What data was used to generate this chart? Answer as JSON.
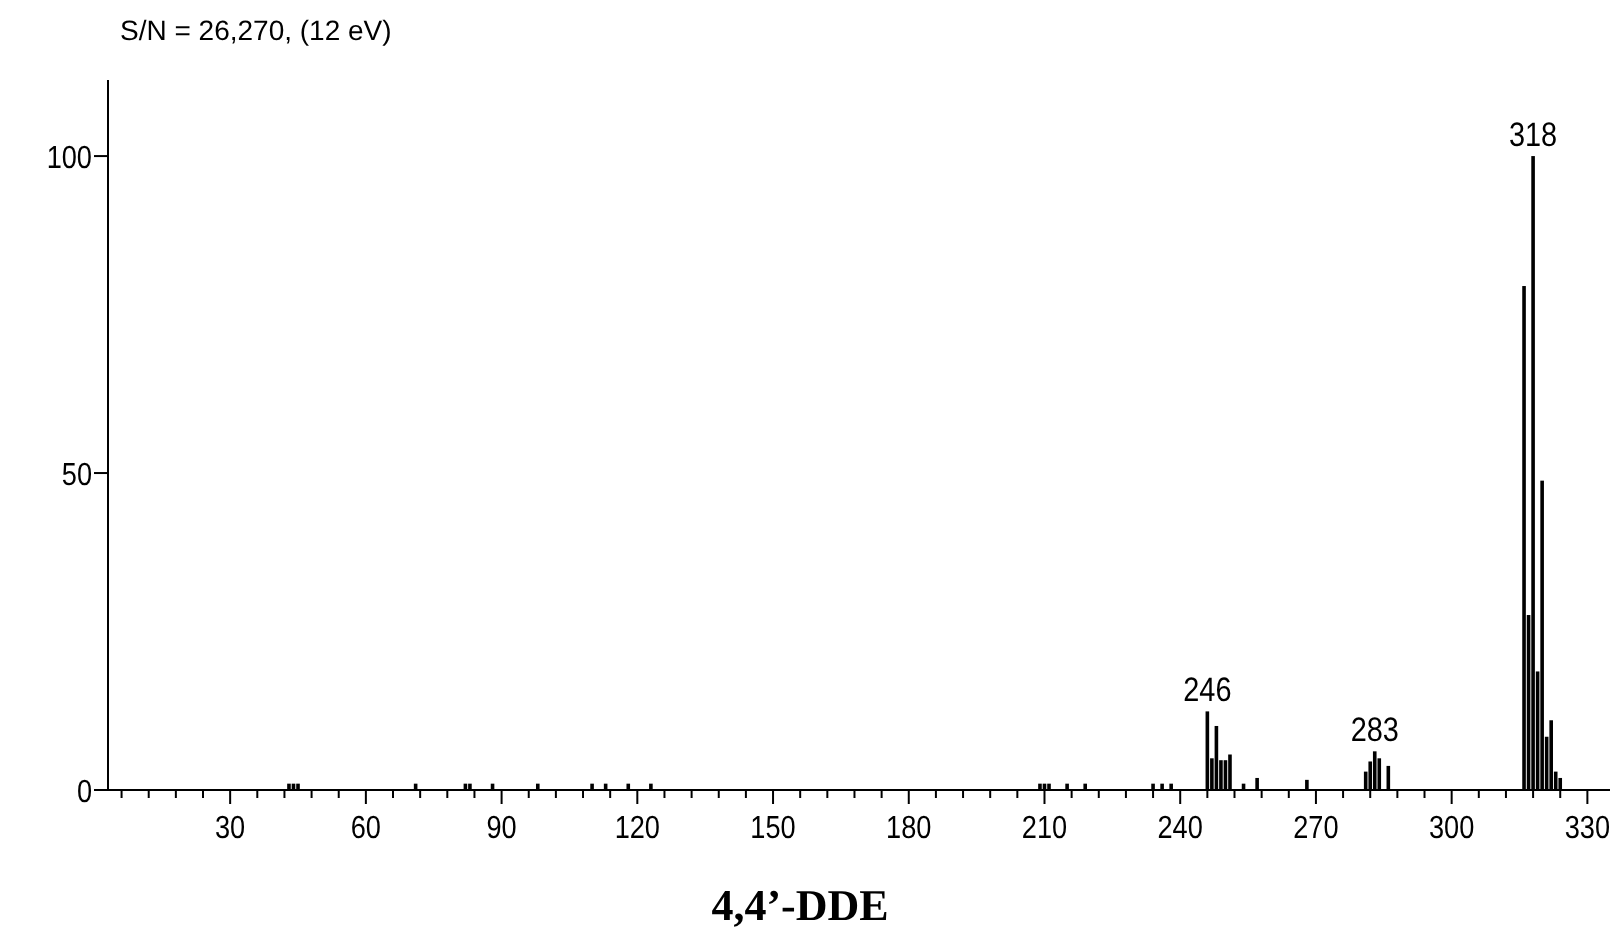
{
  "chart_data": {
    "type": "bar",
    "title": "4,4’-DDE",
    "subtitle": "S/N = 26,270, (12 eV)",
    "x": [
      43,
      44,
      45,
      71,
      82,
      83,
      88,
      98,
      110,
      113,
      118,
      123,
      209,
      210,
      211,
      215,
      219,
      234,
      236,
      238,
      246,
      247,
      248,
      249,
      250,
      251,
      254,
      257,
      268,
      281,
      282,
      283,
      284,
      286,
      316,
      317,
      318,
      319,
      320,
      321,
      322,
      323,
      324
    ],
    "values": [
      1,
      1,
      1,
      1,
      1,
      1,
      1,
      1,
      1,
      1,
      1,
      1,
      1,
      1,
      1,
      1,
      1,
      1,
      1,
      1,
      12.4,
      5,
      10.1,
      4.7,
      4.7,
      5.6,
      1,
      1.9,
      1.6,
      2.9,
      4.5,
      6.1,
      5,
      3.8,
      79.5,
      27.6,
      100,
      18.7,
      48.8,
      8.4,
      11,
      2.9,
      1.9
    ],
    "color": "#000000",
    "xlim": [
      3,
      335
    ],
    "ylim": [
      0,
      112
    ],
    "xticks": [
      {
        "value": 6,
        "label": null
      },
      {
        "value": 12,
        "label": null
      },
      {
        "value": 18,
        "label": null
      },
      {
        "value": 24,
        "label": null
      },
      30,
      {
        "value": 36,
        "label": null
      },
      {
        "value": 42,
        "label": null
      },
      {
        "value": 48,
        "label": null
      },
      {
        "value": 54,
        "label": null
      },
      60,
      {
        "value": 66,
        "label": null
      },
      {
        "value": 72,
        "label": null
      },
      {
        "value": 78,
        "label": null
      },
      {
        "value": 84,
        "label": null
      },
      90,
      {
        "value": 96,
        "label": null
      },
      {
        "value": 102,
        "label": null
      },
      {
        "value": 108,
        "label": null
      },
      {
        "value": 114,
        "label": null
      },
      120,
      {
        "value": 126,
        "label": null
      },
      {
        "value": 132,
        "label": null
      },
      {
        "value": 138,
        "label": null
      },
      {
        "value": 144,
        "label": null
      },
      150,
      {
        "value": 156,
        "label": null
      },
      {
        "value": 162,
        "label": null
      },
      {
        "value": 168,
        "label": null
      },
      {
        "value": 174,
        "label": null
      },
      180,
      {
        "value": 186,
        "label": null
      },
      {
        "value": 192,
        "label": null
      },
      {
        "value": 198,
        "label": null
      },
      {
        "value": 204,
        "label": null
      },
      210,
      {
        "value": 216,
        "label": null
      },
      {
        "value": 222,
        "label": null
      },
      {
        "value": 228,
        "label": null
      },
      {
        "value": 234,
        "label": null
      },
      240,
      {
        "value": 246,
        "label": null
      },
      {
        "value": 252,
        "label": null
      },
      {
        "value": 258,
        "label": null
      },
      {
        "value": 264,
        "label": null
      },
      270,
      {
        "value": 276,
        "label": null
      },
      {
        "value": 282,
        "label": null
      },
      {
        "value": 288,
        "label": null
      },
      {
        "value": 294,
        "label": null
      },
      300,
      {
        "value": 306,
        "label": null
      },
      {
        "value": 312,
        "label": null
      },
      {
        "value": 318,
        "label": null
      },
      {
        "value": 324,
        "label": null
      },
      330
    ],
    "yticks": [
      0,
      50,
      100
    ],
    "annotations": [
      {
        "text": "246",
        "x": 246,
        "y": 12.4
      },
      {
        "text": "283",
        "x": 283,
        "y": 6.1
      },
      {
        "text": "318",
        "x": 318,
        "y": 100
      }
    ],
    "grid": false
  }
}
